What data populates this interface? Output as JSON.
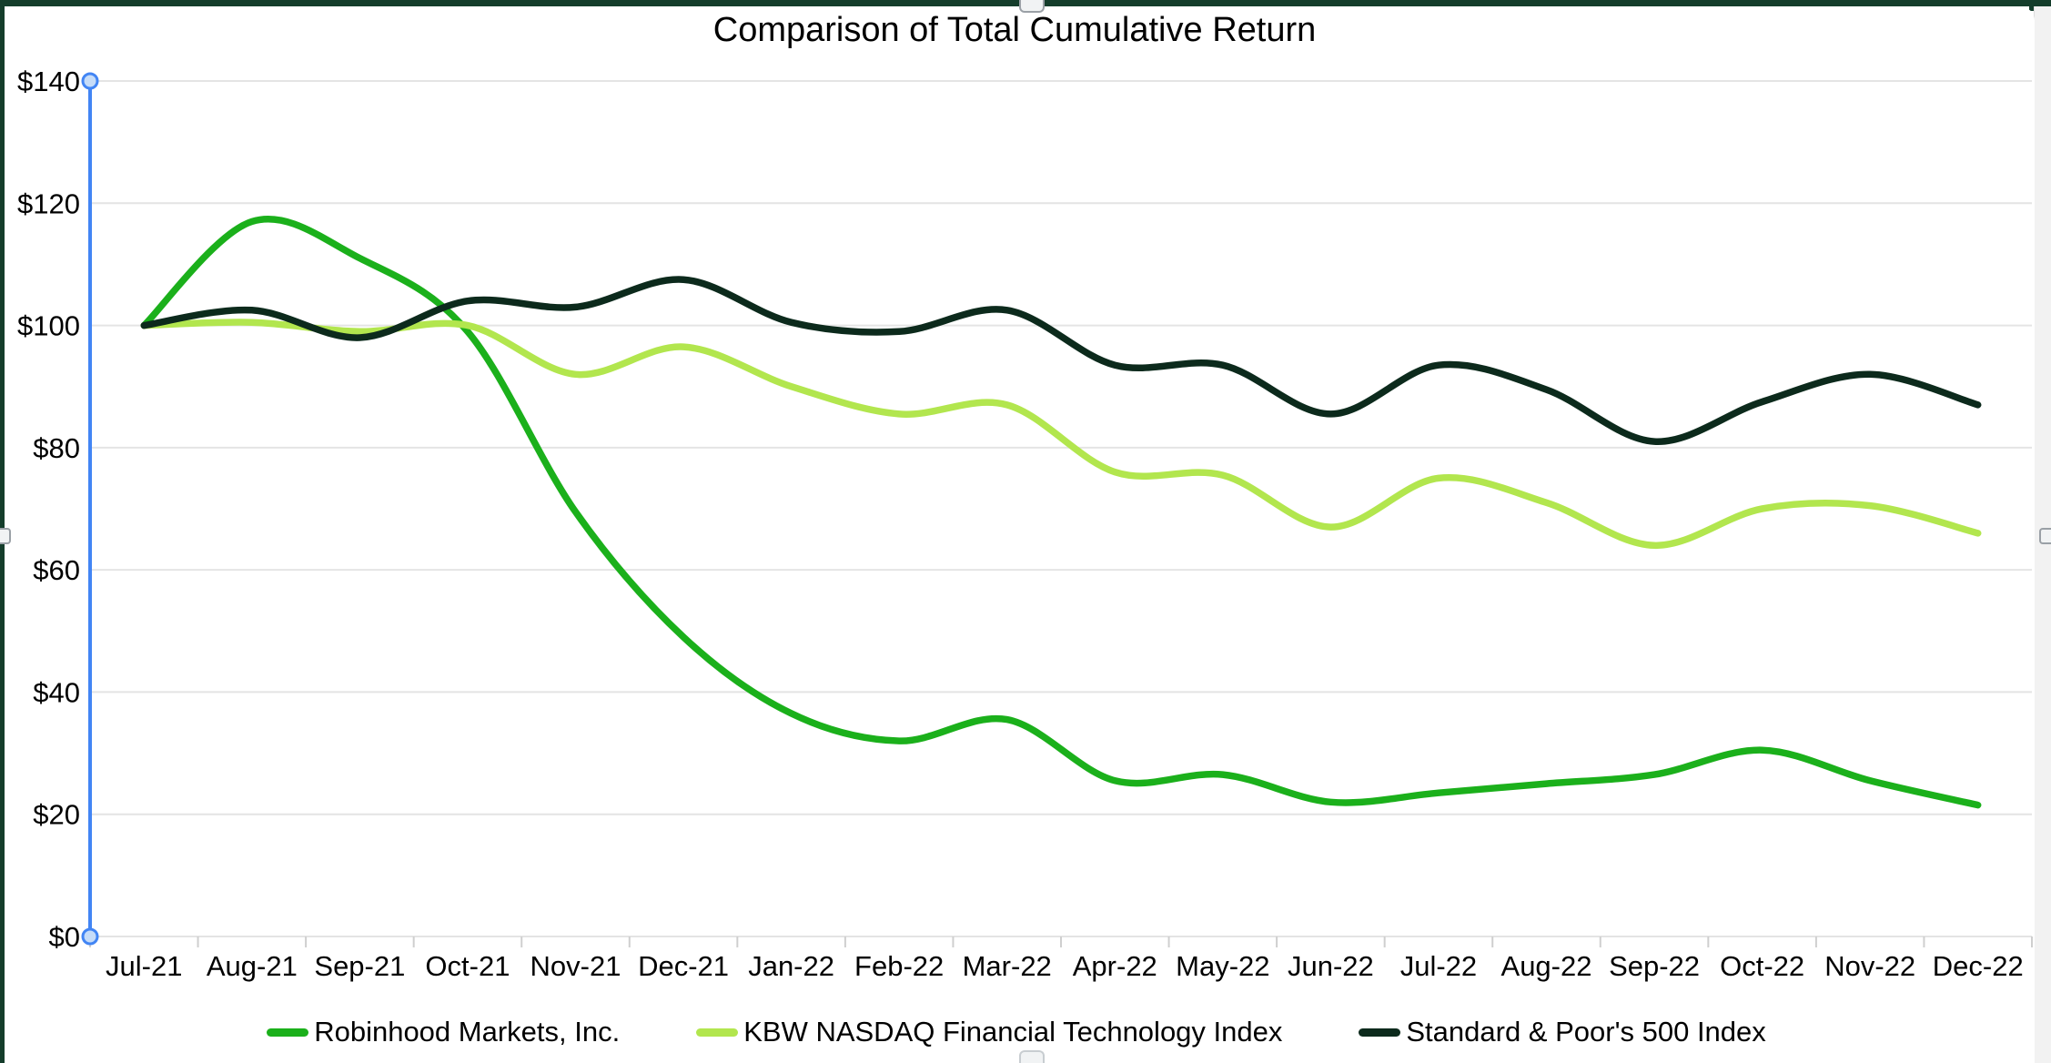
{
  "chart_data": {
    "type": "line",
    "title": "Comparison of Total Cumulative Return",
    "categories": [
      "Jul-21",
      "Aug-21",
      "Sep-21",
      "Oct-21",
      "Nov-21",
      "Dec-21",
      "Jan-22",
      "Feb-22",
      "Mar-22",
      "Apr-22",
      "May-22",
      "Jun-22",
      "Jul-22",
      "Aug-22",
      "Sep-22",
      "Oct-22",
      "Nov-22",
      "Dec-22"
    ],
    "series": [
      {
        "name": "Robinhood Markets, Inc.",
        "color": "#1bb01b",
        "values": [
          100,
          117,
          111,
          99,
          69.5,
          49,
          36.5,
          32,
          35.5,
          25.5,
          26.5,
          22,
          23.5,
          25,
          26.5,
          30.5,
          25.5,
          21.5
        ]
      },
      {
        "name": "KBW NASDAQ Financial Technology Index",
        "color": "#b2e64e",
        "values": [
          100,
          100.5,
          99,
          100,
          92,
          96.5,
          90,
          85.5,
          87,
          76,
          75.5,
          67,
          75,
          71,
          64,
          70,
          70.5,
          66
        ]
      },
      {
        "name": "Standard & Poor's 500 Index",
        "color": "#0c2a1c",
        "values": [
          100,
          102.5,
          98,
          104,
          103,
          107.5,
          100.5,
          99,
          102.5,
          93.5,
          93.5,
          85.5,
          93.5,
          89.5,
          81,
          87.5,
          92,
          87
        ]
      }
    ],
    "y_axis": {
      "min": 0,
      "max": 140,
      "step": 20,
      "tick_labels": [
        "$0",
        "$20",
        "$40",
        "$60",
        "$80",
        "$100",
        "$120",
        "$140"
      ]
    },
    "x_axis_label_format": "MMM-YY",
    "grid": true,
    "line_smooth": true,
    "legend_position": "bottom"
  },
  "ui_colors": {
    "selection_axis_blue": "#4285f4",
    "selection_handle_fill": "#c6dcf8",
    "gridline": "#e4e4e4",
    "tick": "#cfcfcf",
    "sheet_background_green": "#143d2b"
  }
}
